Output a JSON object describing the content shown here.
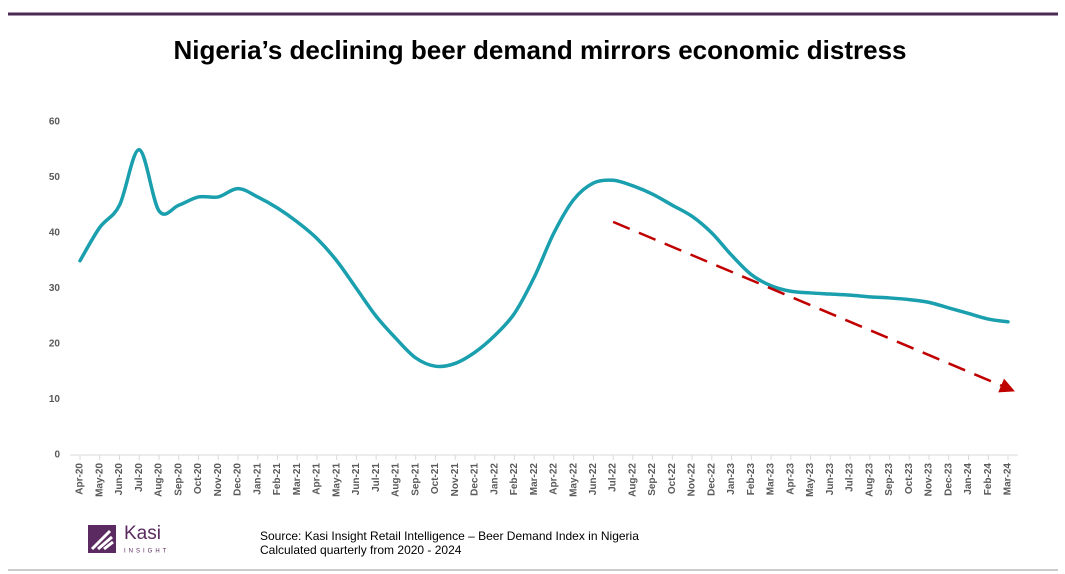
{
  "chart_data": {
    "type": "line",
    "title": "Nigeria’s declining beer demand mirrors economic distress",
    "categories": [
      "Apr-20",
      "May-20",
      "Jun-20",
      "Jul-20",
      "Aug-20",
      "Sep-20",
      "Oct-20",
      "Nov-20",
      "Dec-20",
      "Jan-21",
      "Feb-21",
      "Mar-21",
      "Apr-21",
      "May-21",
      "Jun-21",
      "Jul-21",
      "Aug-21",
      "Sep-21",
      "Oct-21",
      "Nov-21",
      "Dec-21",
      "Jan-22",
      "Feb-22",
      "Mar-22",
      "Apr-22",
      "May-22",
      "Jun-22",
      "Jul-22",
      "Aug-22",
      "Sep-22",
      "Oct-22",
      "Nov-22",
      "Dec-22",
      "Jan-23",
      "Feb-23",
      "Mar-23",
      "Apr-23",
      "May-23",
      "Jun-23",
      "Jul-23",
      "Aug-23",
      "Sep-23",
      "Oct-23",
      "Nov-23",
      "Dec-23",
      "Jan-24",
      "Feb-24",
      "Mar-24"
    ],
    "values": [
      35,
      41,
      45,
      55,
      44,
      45,
      46.5,
      46.5,
      48,
      46.5,
      44.5,
      42,
      39,
      35,
      30,
      25,
      21,
      17.5,
      16,
      16.5,
      18.5,
      21.5,
      25.5,
      32,
      40,
      46,
      49,
      49.5,
      48.5,
      47,
      45,
      43,
      40,
      36,
      32.5,
      30.5,
      29.5,
      29.2,
      29,
      28.8,
      28.5,
      28.3,
      28,
      27.5,
      26.5,
      25.5,
      24.5,
      24
    ],
    "color": "#1a9fae",
    "trend": {
      "from": {
        "x": "Jul-22",
        "y": 42
      },
      "to": {
        "x": "Mar-24",
        "y": 12
      },
      "color": "#c00000"
    },
    "ylim": [
      0,
      60
    ],
    "yticks": [
      0,
      10,
      20,
      30,
      40,
      50,
      60
    ],
    "logo": {
      "name": "Kasi",
      "tagline": "INSIGHT"
    },
    "source": [
      "Source: Kasi Insight Retail Intelligence – Beer Demand Index in Nigeria",
      "Calculated quarterly from  2020 - 2024"
    ]
  }
}
